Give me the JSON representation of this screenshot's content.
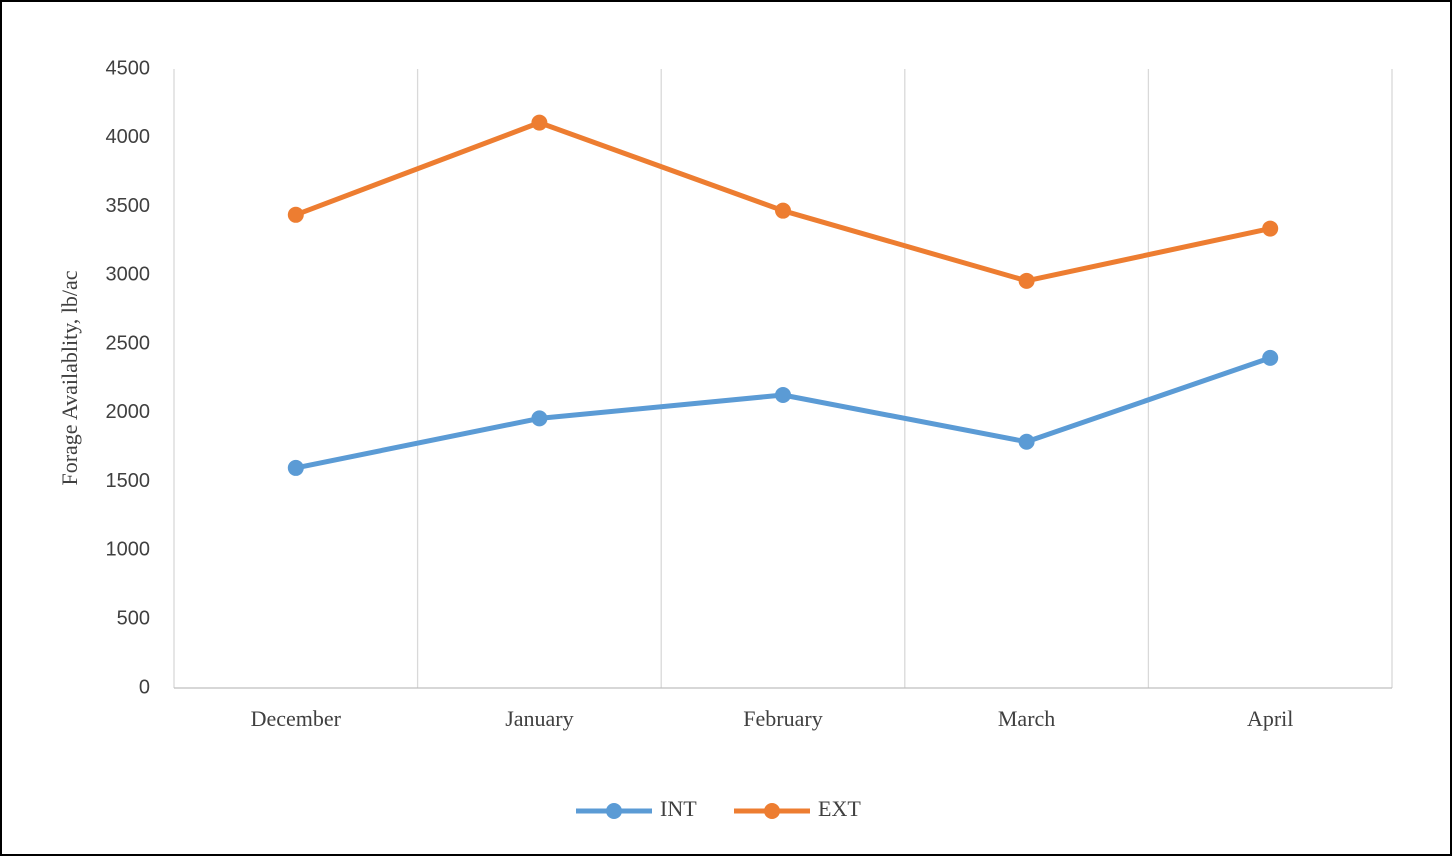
{
  "chart_data": {
    "type": "line",
    "y_label": "Forage Availablity, lb/ac",
    "categories": [
      "December",
      "January",
      "February",
      "March",
      "April"
    ],
    "series": [
      {
        "name": "INT",
        "color": "#5b9bd5",
        "values": [
          1600,
          1960,
          2130,
          1790,
          2400
        ]
      },
      {
        "name": "EXT",
        "color": "#ed7d31",
        "values": [
          3440,
          4110,
          3470,
          2960,
          3340
        ]
      }
    ],
    "ylim": [
      0,
      4500
    ],
    "yticks": [
      0,
      500,
      1000,
      1500,
      2000,
      2500,
      3000,
      3500,
      4000,
      4500
    ],
    "grid": true,
    "legend": "bottom"
  }
}
